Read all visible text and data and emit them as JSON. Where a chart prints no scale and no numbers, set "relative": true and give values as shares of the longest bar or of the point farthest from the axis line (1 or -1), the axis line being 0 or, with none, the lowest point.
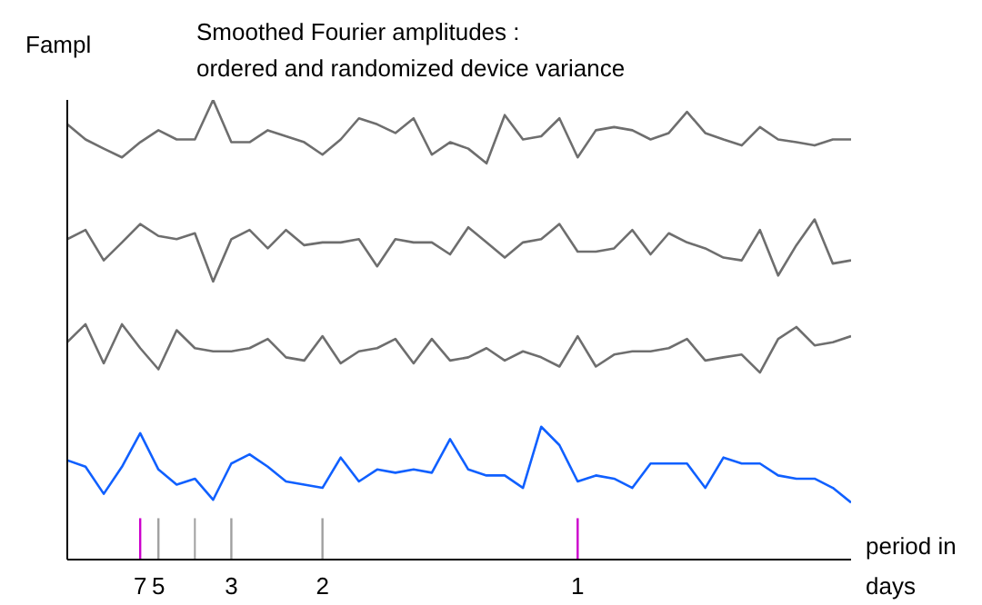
{
  "chart_data": {
    "type": "line",
    "title": "Smoothed Fourier amplitudes :",
    "subtitle": "ordered and randomized device variance",
    "ylabel": "Fampl",
    "xlabel": "period in days",
    "relative": true,
    "marker": "none",
    "categories": [
      null,
      null,
      null,
      null,
      "7",
      "5",
      null,
      null,
      null,
      "3",
      null,
      null,
      null,
      null,
      "2",
      null,
      null,
      null,
      null,
      null,
      null,
      null,
      null,
      null,
      null,
      null,
      null,
      null,
      "1",
      null,
      null,
      null,
      null,
      null,
      null,
      null,
      null,
      null,
      null,
      null,
      null,
      null,
      null,
      null
    ],
    "ref_lines": [
      {
        "axis": "x",
        "value": "7",
        "color": "#cc00cc"
      },
      {
        "axis": "x",
        "value": "5",
        "color": "#a0a0a0"
      },
      {
        "axis": "x",
        "value": "3",
        "color": "#a0a0a0"
      },
      {
        "axis": "x",
        "value": "2",
        "color": "#a0a0a0"
      },
      {
        "axis": "x",
        "value": "1",
        "color": "#cc00cc"
      }
    ],
    "series": [
      {
        "color": "#6e6e6e",
        "values": [
          0.947,
          0.914,
          0.894,
          0.875,
          0.908,
          0.934,
          0.914,
          0.914,
          1,
          0.908,
          0.908,
          0.934,
          0.921,
          0.908,
          0.881,
          0.914,
          0.96,
          0.947,
          0.928,
          0.96,
          0.881,
          0.908,
          0.894,
          0.862,
          0.967,
          0.914,
          0.921,
          0.96,
          0.875,
          0.934,
          0.941,
          0.934,
          0.914,
          0.928,
          0.974,
          0.928,
          0.914,
          0.901,
          0.941,
          0.914,
          0.908,
          0.901,
          0.914,
          0.914
        ]
      },
      {
        "color": "#6e6e6e",
        "values": [
          0.697,
          0.717,
          0.651,
          0.69,
          0.73,
          0.704,
          0.697,
          0.71,
          0.605,
          0.697,
          0.717,
          0.677,
          0.717,
          0.684,
          0.69,
          0.69,
          0.697,
          0.638,
          0.697,
          0.69,
          0.69,
          0.664,
          0.723,
          0.69,
          0.657,
          0.69,
          0.697,
          0.73,
          0.67,
          0.67,
          0.677,
          0.717,
          0.664,
          0.71,
          0.69,
          0.677,
          0.657,
          0.651,
          0.717,
          0.618,
          0.684,
          0.74,
          0.644,
          0.651
        ]
      },
      {
        "color": "#6e6e6e",
        "values": [
          0.473,
          0.512,
          0.427,
          0.512,
          0.46,
          0.414,
          0.499,
          0.46,
          0.453,
          0.453,
          0.46,
          0.48,
          0.44,
          0.433,
          0.486,
          0.427,
          0.453,
          0.46,
          0.48,
          0.427,
          0.48,
          0.433,
          0.44,
          0.46,
          0.433,
          0.453,
          0.44,
          0.42,
          0.486,
          0.42,
          0.446,
          0.453,
          0.453,
          0.46,
          0.48,
          0.433,
          0.44,
          0.446,
          0.407,
          0.48,
          0.506,
          0.466,
          0.473,
          0.486
        ]
      },
      {
        "color": "#1060ff",
        "values": [
          0.216,
          0.202,
          0.143,
          0.202,
          0.275,
          0.196,
          0.163,
          0.176,
          0.13,
          0.209,
          0.229,
          0.202,
          0.17,
          0.163,
          0.156,
          0.222,
          0.17,
          0.196,
          0.189,
          0.196,
          0.189,
          0.262,
          0.196,
          0.183,
          0.183,
          0.156,
          0.289,
          0.249,
          0.17,
          0.183,
          0.176,
          0.156,
          0.209,
          0.209,
          0.209,
          0.156,
          0.222,
          0.209,
          0.209,
          0.183,
          0.176,
          0.176,
          0.156,
          0.124
        ]
      }
    ]
  }
}
